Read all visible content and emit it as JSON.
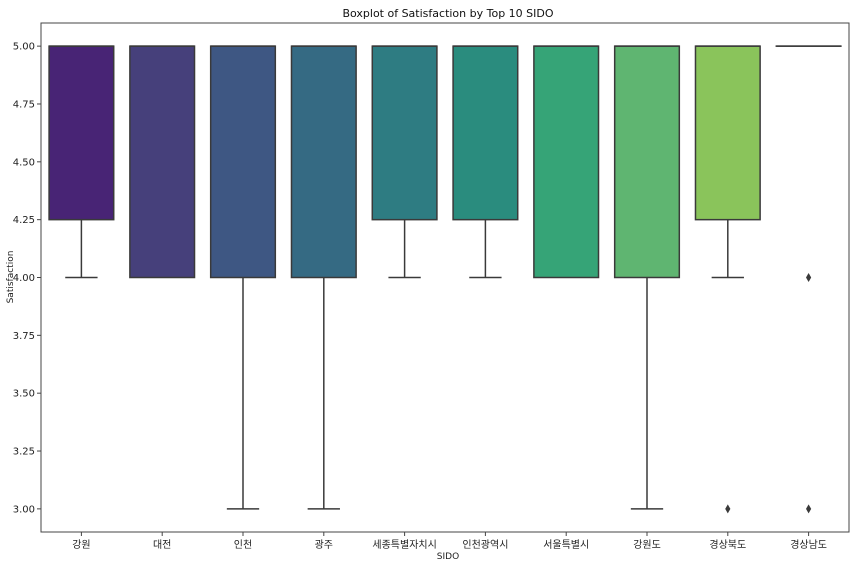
{
  "chart_data": {
    "type": "boxplot",
    "title": "Boxplot of Satisfaction by Top 10 SIDO",
    "xlabel": "SIDO",
    "ylabel": "Satisfaction",
    "ylim": [
      2.9,
      5.1
    ],
    "yticks": [
      "3.00",
      "3.25",
      "3.50",
      "3.75",
      "4.00",
      "4.25",
      "4.50",
      "4.75",
      "5.00"
    ],
    "grid": false,
    "legend": "none",
    "categories": [
      "강원",
      "대전",
      "인천",
      "광주",
      "세종특별자치시",
      "인천광역시",
      "서울특별시",
      "강원도",
      "경상북도",
      "경상남도"
    ],
    "boxes": [
      {
        "category": "강원",
        "whisker_low": 4.0,
        "q1": 4.25,
        "median": 5.0,
        "q3": 5.0,
        "whisker_high": 5.0,
        "outliers": [],
        "color": "#482475"
      },
      {
        "category": "대전",
        "whisker_low": 4.0,
        "q1": 4.0,
        "median": 5.0,
        "q3": 5.0,
        "whisker_high": 5.0,
        "outliers": [],
        "color": "#46407b"
      },
      {
        "category": "인천",
        "whisker_low": 3.0,
        "q1": 4.0,
        "median": 5.0,
        "q3": 5.0,
        "whisker_high": 5.0,
        "outliers": [],
        "color": "#3e5783"
      },
      {
        "category": "광주",
        "whisker_low": 3.0,
        "q1": 4.0,
        "median": 5.0,
        "q3": 5.0,
        "whisker_high": 5.0,
        "outliers": [],
        "color": "#356a83"
      },
      {
        "category": "세종특별자치시",
        "whisker_low": 4.0,
        "q1": 4.25,
        "median": 5.0,
        "q3": 5.0,
        "whisker_high": 5.0,
        "outliers": [],
        "color": "#2e7c82"
      },
      {
        "category": "인천광역시",
        "whisker_low": 4.0,
        "q1": 4.25,
        "median": 5.0,
        "q3": 5.0,
        "whisker_high": 5.0,
        "outliers": [],
        "color": "#2a8c7e"
      },
      {
        "category": "서울특별시",
        "whisker_low": 4.0,
        "q1": 4.0,
        "median": 5.0,
        "q3": 5.0,
        "whisker_high": 5.0,
        "outliers": [],
        "color": "#36a477"
      },
      {
        "category": "강원도",
        "whisker_low": 3.0,
        "q1": 4.0,
        "median": 5.0,
        "q3": 5.0,
        "whisker_high": 5.0,
        "outliers": [],
        "color": "#5fb571"
      },
      {
        "category": "경상북도",
        "whisker_low": 4.0,
        "q1": 4.25,
        "median": 5.0,
        "q3": 5.0,
        "whisker_high": 5.0,
        "outliers": [
          3.0
        ],
        "color": "#8ac45b"
      },
      {
        "category": "경상남도",
        "whisker_low": 5.0,
        "q1": 5.0,
        "median": 5.0,
        "q3": 5.0,
        "whisker_high": 5.0,
        "outliers": [
          4.0,
          3.0
        ],
        "color": "#d2e21b"
      }
    ],
    "line_color": "#3a3a3a"
  }
}
